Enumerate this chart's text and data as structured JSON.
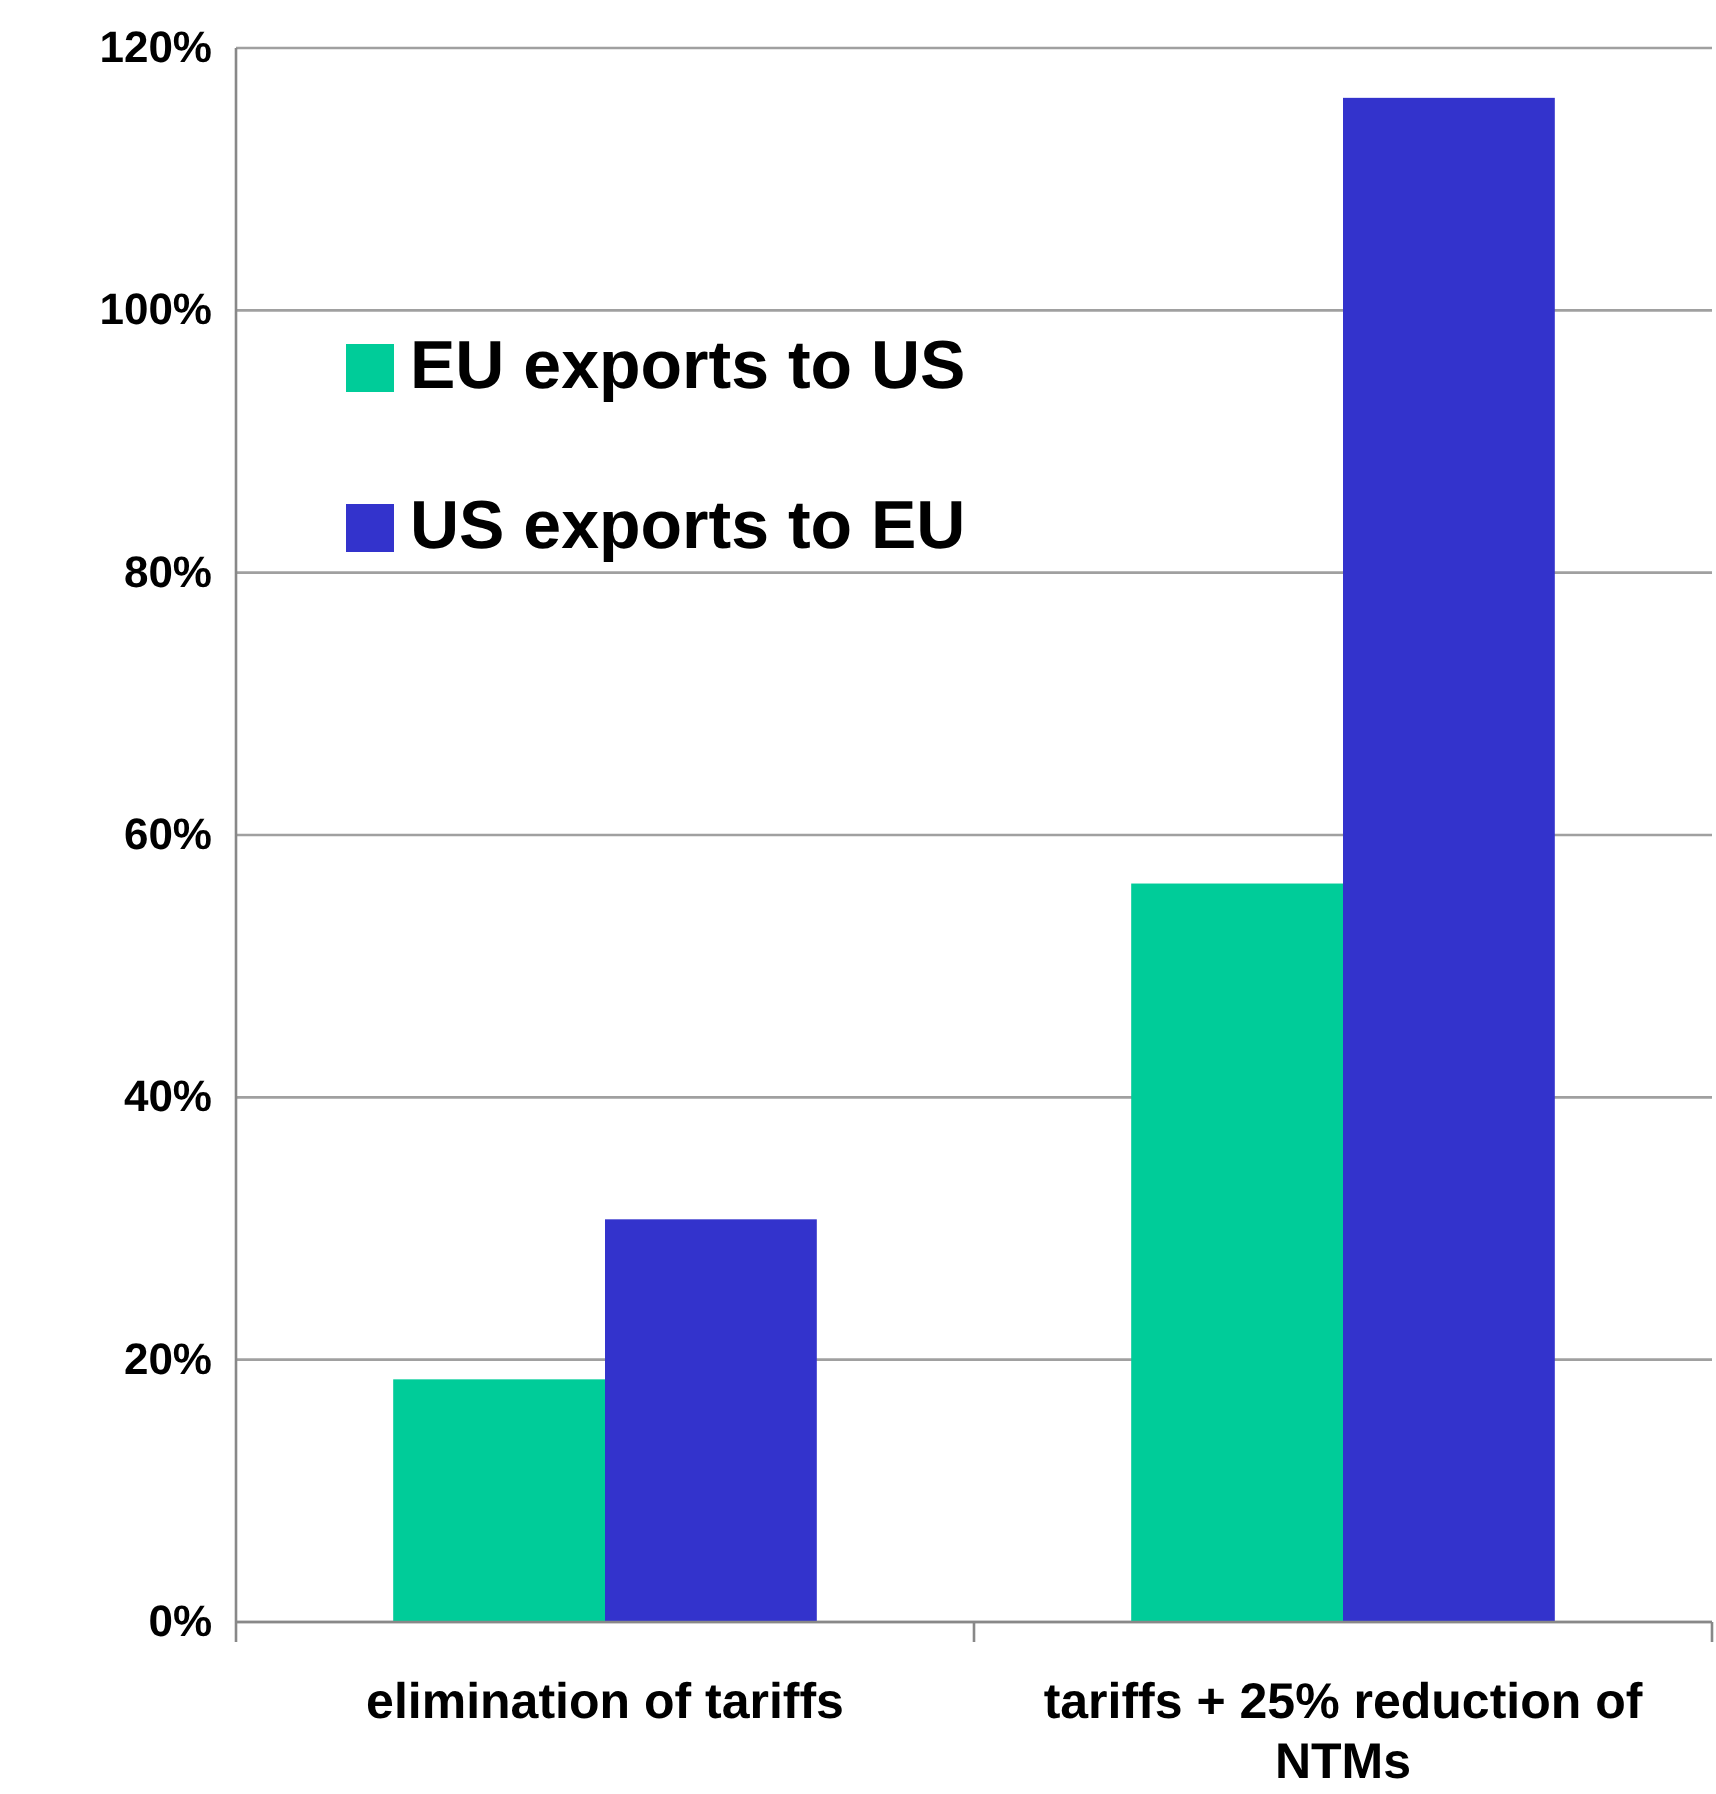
{
  "chart_data": {
    "type": "bar",
    "categories": [
      "elimination of tariffs",
      "tariffs + 25% reduction of NTMs"
    ],
    "series": [
      {
        "name": "EU exports to US",
        "color": "#00cc99",
        "values": [
          18.5,
          56.3
        ]
      },
      {
        "name": "US exports to EU",
        "color": "#3333cc",
        "values": [
          30.7,
          116.2
        ]
      }
    ],
    "ylim": [
      0,
      120
    ],
    "yticks": [
      {
        "value": 0,
        "label": "0%"
      },
      {
        "value": 20,
        "label": "20%"
      },
      {
        "value": 40,
        "label": "40%"
      },
      {
        "value": 60,
        "label": "60%"
      },
      {
        "value": 80,
        "label": "80%"
      },
      {
        "value": 100,
        "label": "100%"
      },
      {
        "value": 120,
        "label": "120%"
      }
    ],
    "grid": "y",
    "legend": "top left"
  }
}
